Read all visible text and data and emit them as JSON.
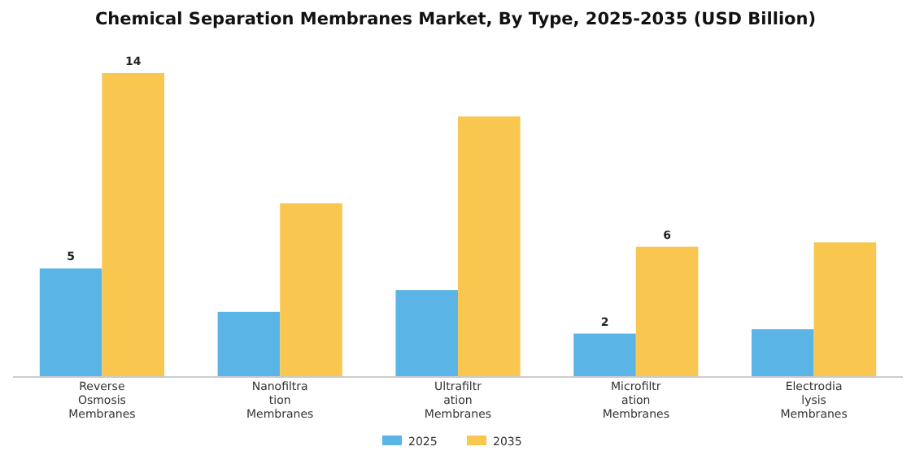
{
  "chart_data": {
    "type": "bar",
    "title": "Chemical Separation Membranes Market, By Type, 2025-2035 (USD Billion)",
    "categories": [
      "Reverse Osmosis Membranes",
      "Nanofiltration Membranes",
      "Ultrafiltration Membranes",
      "Microfiltration Membranes",
      "Electrodialysis Membranes"
    ],
    "series": [
      {
        "name": "2025",
        "color": "#5ab4e5",
        "values": [
          5,
          3,
          4,
          2,
          2.2
        ],
        "value_labels": [
          "5",
          null,
          null,
          "2",
          null
        ]
      },
      {
        "name": "2035",
        "color": "#f9c74f",
        "values": [
          14,
          8,
          12,
          6,
          6.2
        ],
        "value_labels": [
          "14",
          null,
          null,
          "6",
          null
        ]
      }
    ],
    "legend": "bottom"
  }
}
